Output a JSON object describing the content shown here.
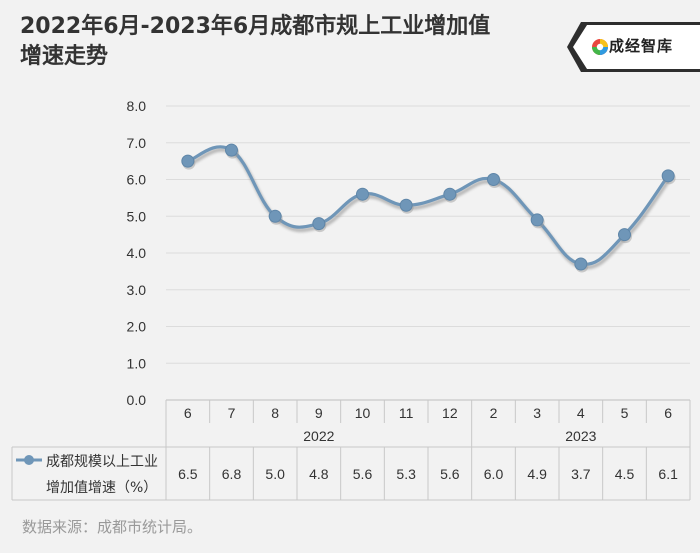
{
  "header": {
    "title_line1": "2022年6月-2023年6月成都市规上工业增加值",
    "title_line2": "增速走势"
  },
  "logo": {
    "text": "成经智库",
    "icon": "colorful-swirl-icon"
  },
  "chart_data": {
    "type": "line",
    "categories": [
      "6",
      "7",
      "8",
      "9",
      "10",
      "11",
      "12",
      "2",
      "3",
      "4",
      "5",
      "6"
    ],
    "groups": [
      {
        "label": "2022",
        "start": 0,
        "end": 6
      },
      {
        "label": "2023",
        "start": 7,
        "end": 11
      }
    ],
    "series": [
      {
        "name": "成都规模以上工业增加值增速（%）",
        "name_line1": "成都规模以上工业",
        "name_line2": "增加值增速（%）",
        "values": [
          6.5,
          6.8,
          5.0,
          4.8,
          5.6,
          5.3,
          5.6,
          6.0,
          4.9,
          3.7,
          4.5,
          6.1
        ],
        "value_labels": [
          "6.5",
          "6.8",
          "5.0",
          "4.8",
          "5.6",
          "5.3",
          "5.6",
          "6.0",
          "4.9",
          "3.7",
          "4.5",
          "6.1"
        ],
        "color": "#6f96b8"
      }
    ],
    "ylim": [
      0,
      8
    ],
    "yticks": [
      "0.0",
      "1.0",
      "2.0",
      "3.0",
      "4.0",
      "5.0",
      "6.0",
      "7.0",
      "8.0"
    ],
    "grid": true,
    "smooth": true,
    "data_table": true
  },
  "footer": {
    "source": "数据来源：成都市统计局。"
  }
}
